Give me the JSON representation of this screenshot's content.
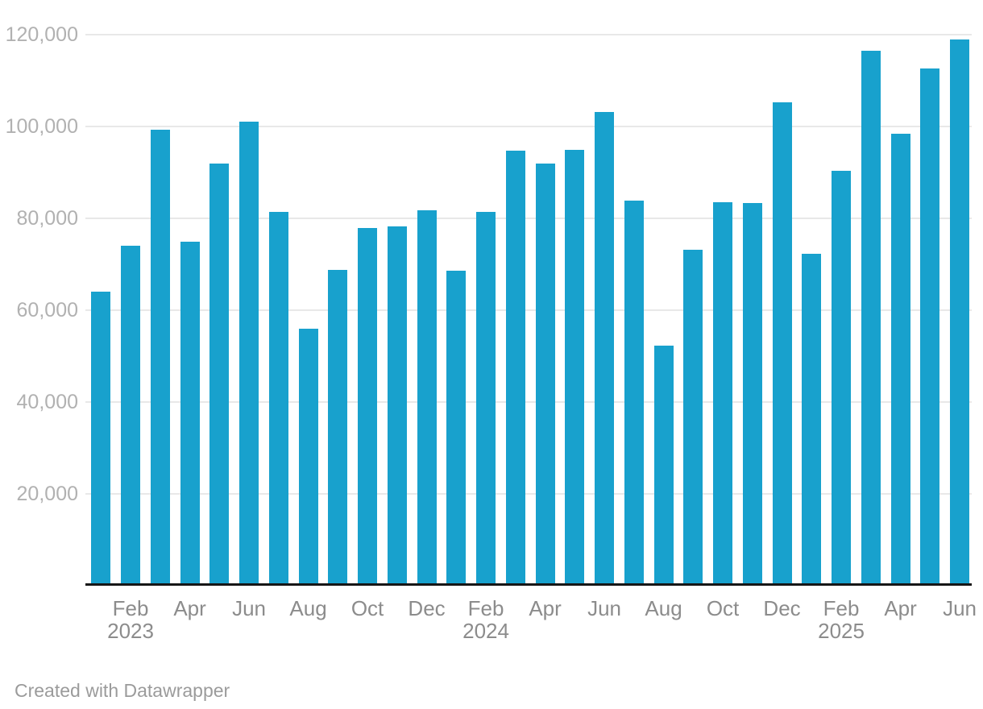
{
  "footer": {
    "credit": "Created with Datawrapper"
  },
  "colors": {
    "bar": "#18a1cd",
    "gridline": "#e8e8e8",
    "axis_line": "#161616",
    "y_tick_text": "#b1b1b1",
    "x_tick_text": "#8c8c8c",
    "credit_text": "#9b9b9b"
  },
  "chart_data": {
    "type": "bar",
    "title": "",
    "xlabel": "",
    "ylabel": "",
    "grid": "horizontal",
    "legend_position": "none",
    "ylim": [
      0,
      120000
    ],
    "y_ticks": [
      {
        "value": 20000,
        "label": "20,000"
      },
      {
        "value": 40000,
        "label": "40,000"
      },
      {
        "value": 60000,
        "label": "60,000"
      },
      {
        "value": 80000,
        "label": "80,000"
      },
      {
        "value": 100000,
        "label": "100,000"
      },
      {
        "value": 120000,
        "label": "120,000"
      }
    ],
    "categories": [
      "Jan 2023",
      "Feb 2023",
      "Mar 2023",
      "Apr 2023",
      "May 2023",
      "Jun 2023",
      "Jul 2023",
      "Aug 2023",
      "Sep 2023",
      "Oct 2023",
      "Nov 2023",
      "Dec 2023",
      "Jan 2024",
      "Feb 2024",
      "Mar 2024",
      "Apr 2024",
      "May 2024",
      "Jun 2024",
      "Jul 2024",
      "Aug 2024",
      "Sep 2024",
      "Oct 2024",
      "Nov 2024",
      "Dec 2024",
      "Jan 2025",
      "Feb 2025",
      "Mar 2025",
      "Apr 2025",
      "May 2025",
      "Jun 2025"
    ],
    "values": [
      64000,
      74000,
      99300,
      74900,
      91900,
      101000,
      81400,
      56000,
      68800,
      77900,
      78200,
      81700,
      68600,
      81400,
      94700,
      91900,
      95000,
      103200,
      83800,
      52300,
      73200,
      83500,
      83300,
      105200,
      72200,
      90300,
      116500,
      98400,
      112600,
      119000
    ],
    "x_ticks": [
      {
        "bar_index": 1,
        "label": "Feb",
        "year": "2023"
      },
      {
        "bar_index": 3,
        "label": "Apr"
      },
      {
        "bar_index": 5,
        "label": "Jun"
      },
      {
        "bar_index": 7,
        "label": "Aug"
      },
      {
        "bar_index": 9,
        "label": "Oct"
      },
      {
        "bar_index": 11,
        "label": "Dec"
      },
      {
        "bar_index": 13,
        "label": "Feb",
        "year": "2024"
      },
      {
        "bar_index": 15,
        "label": "Apr"
      },
      {
        "bar_index": 17,
        "label": "Jun"
      },
      {
        "bar_index": 19,
        "label": "Aug"
      },
      {
        "bar_index": 21,
        "label": "Oct"
      },
      {
        "bar_index": 23,
        "label": "Dec"
      },
      {
        "bar_index": 25,
        "label": "Feb",
        "year": "2025"
      },
      {
        "bar_index": 27,
        "label": "Apr"
      },
      {
        "bar_index": 29,
        "label": "Jun"
      }
    ]
  }
}
